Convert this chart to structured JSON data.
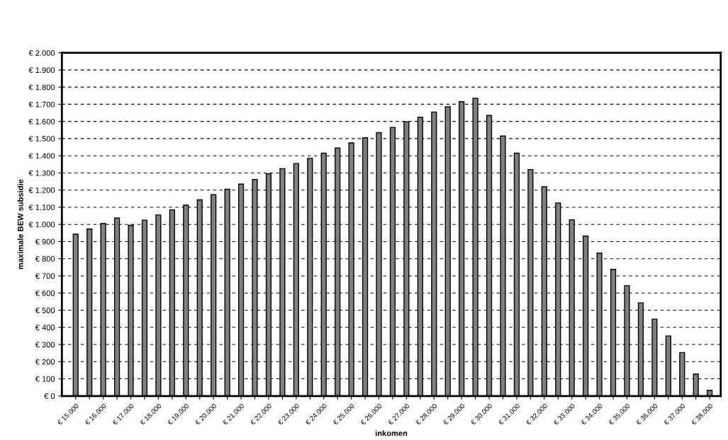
{
  "chart_data": {
    "type": "bar",
    "xlabel": "inkomen",
    "ylabel": "maximale BEW subsidie",
    "categories": [
      "€ 15.000",
      null,
      "€ 16.000",
      null,
      "€ 17.000",
      null,
      "€ 18.000",
      null,
      "€ 19.000",
      null,
      "€ 20.000",
      null,
      "€ 21.000",
      null,
      "€ 22.000",
      null,
      "€ 23.000",
      null,
      "€ 24.000",
      null,
      "€ 25.000",
      null,
      "€ 26.000",
      null,
      "€ 27.000",
      null,
      "€ 28.000",
      null,
      "€ 29.000",
      null,
      "€ 30.000",
      null,
      "€ 31.000",
      null,
      "€ 32.000",
      null,
      "€ 33.000",
      null,
      "€ 34.000",
      null,
      "€ 35.000",
      null,
      "€ 36.000",
      null,
      "€ 37.000",
      null,
      "€ 38.000"
    ],
    "values": [
      943,
      973,
      1005,
      1037,
      995,
      1025,
      1055,
      1085,
      1112,
      1143,
      1173,
      1205,
      1235,
      1262,
      1295,
      1325,
      1355,
      1385,
      1415,
      1445,
      1475,
      1505,
      1535,
      1565,
      1598,
      1625,
      1655,
      1685,
      1715,
      1735,
      1635,
      1515,
      1415,
      1320,
      1220,
      1125,
      1027,
      932,
      833,
      738,
      643,
      543,
      448,
      350,
      253,
      128,
      33
    ],
    "color": "#808080",
    "ylim": [
      0,
      2000
    ],
    "yticks": [
      {
        "value": 0,
        "label": "€ 0"
      },
      {
        "value": 100,
        "label": "€ 100"
      },
      {
        "value": 200,
        "label": "€ 200"
      },
      {
        "value": 300,
        "label": "€ 300"
      },
      {
        "value": 400,
        "label": "€ 400"
      },
      {
        "value": 500,
        "label": "€ 500"
      },
      {
        "value": 600,
        "label": "€ 600"
      },
      {
        "value": 700,
        "label": "€ 700"
      },
      {
        "value": 800,
        "label": "€ 800"
      },
      {
        "value": 900,
        "label": "€ 900"
      },
      {
        "value": 1000,
        "label": "€ 1.000"
      },
      {
        "value": 1100,
        "label": "€ 1.100"
      },
      {
        "value": 1200,
        "label": "€ 1.200"
      },
      {
        "value": 1300,
        "label": "€ 1.300"
      },
      {
        "value": 1400,
        "label": "€ 1.400"
      },
      {
        "value": 1500,
        "label": "€ 1.500"
      },
      {
        "value": 1600,
        "label": "€ 1.600"
      },
      {
        "value": 1700,
        "label": "€ 1.700"
      },
      {
        "value": 1800,
        "label": "€ 1.800"
      },
      {
        "value": 1900,
        "label": "€ 1.900"
      },
      {
        "value": 2000,
        "label": "€ 2.000"
      }
    ],
    "grid": "y",
    "line_style": "dashed"
  }
}
